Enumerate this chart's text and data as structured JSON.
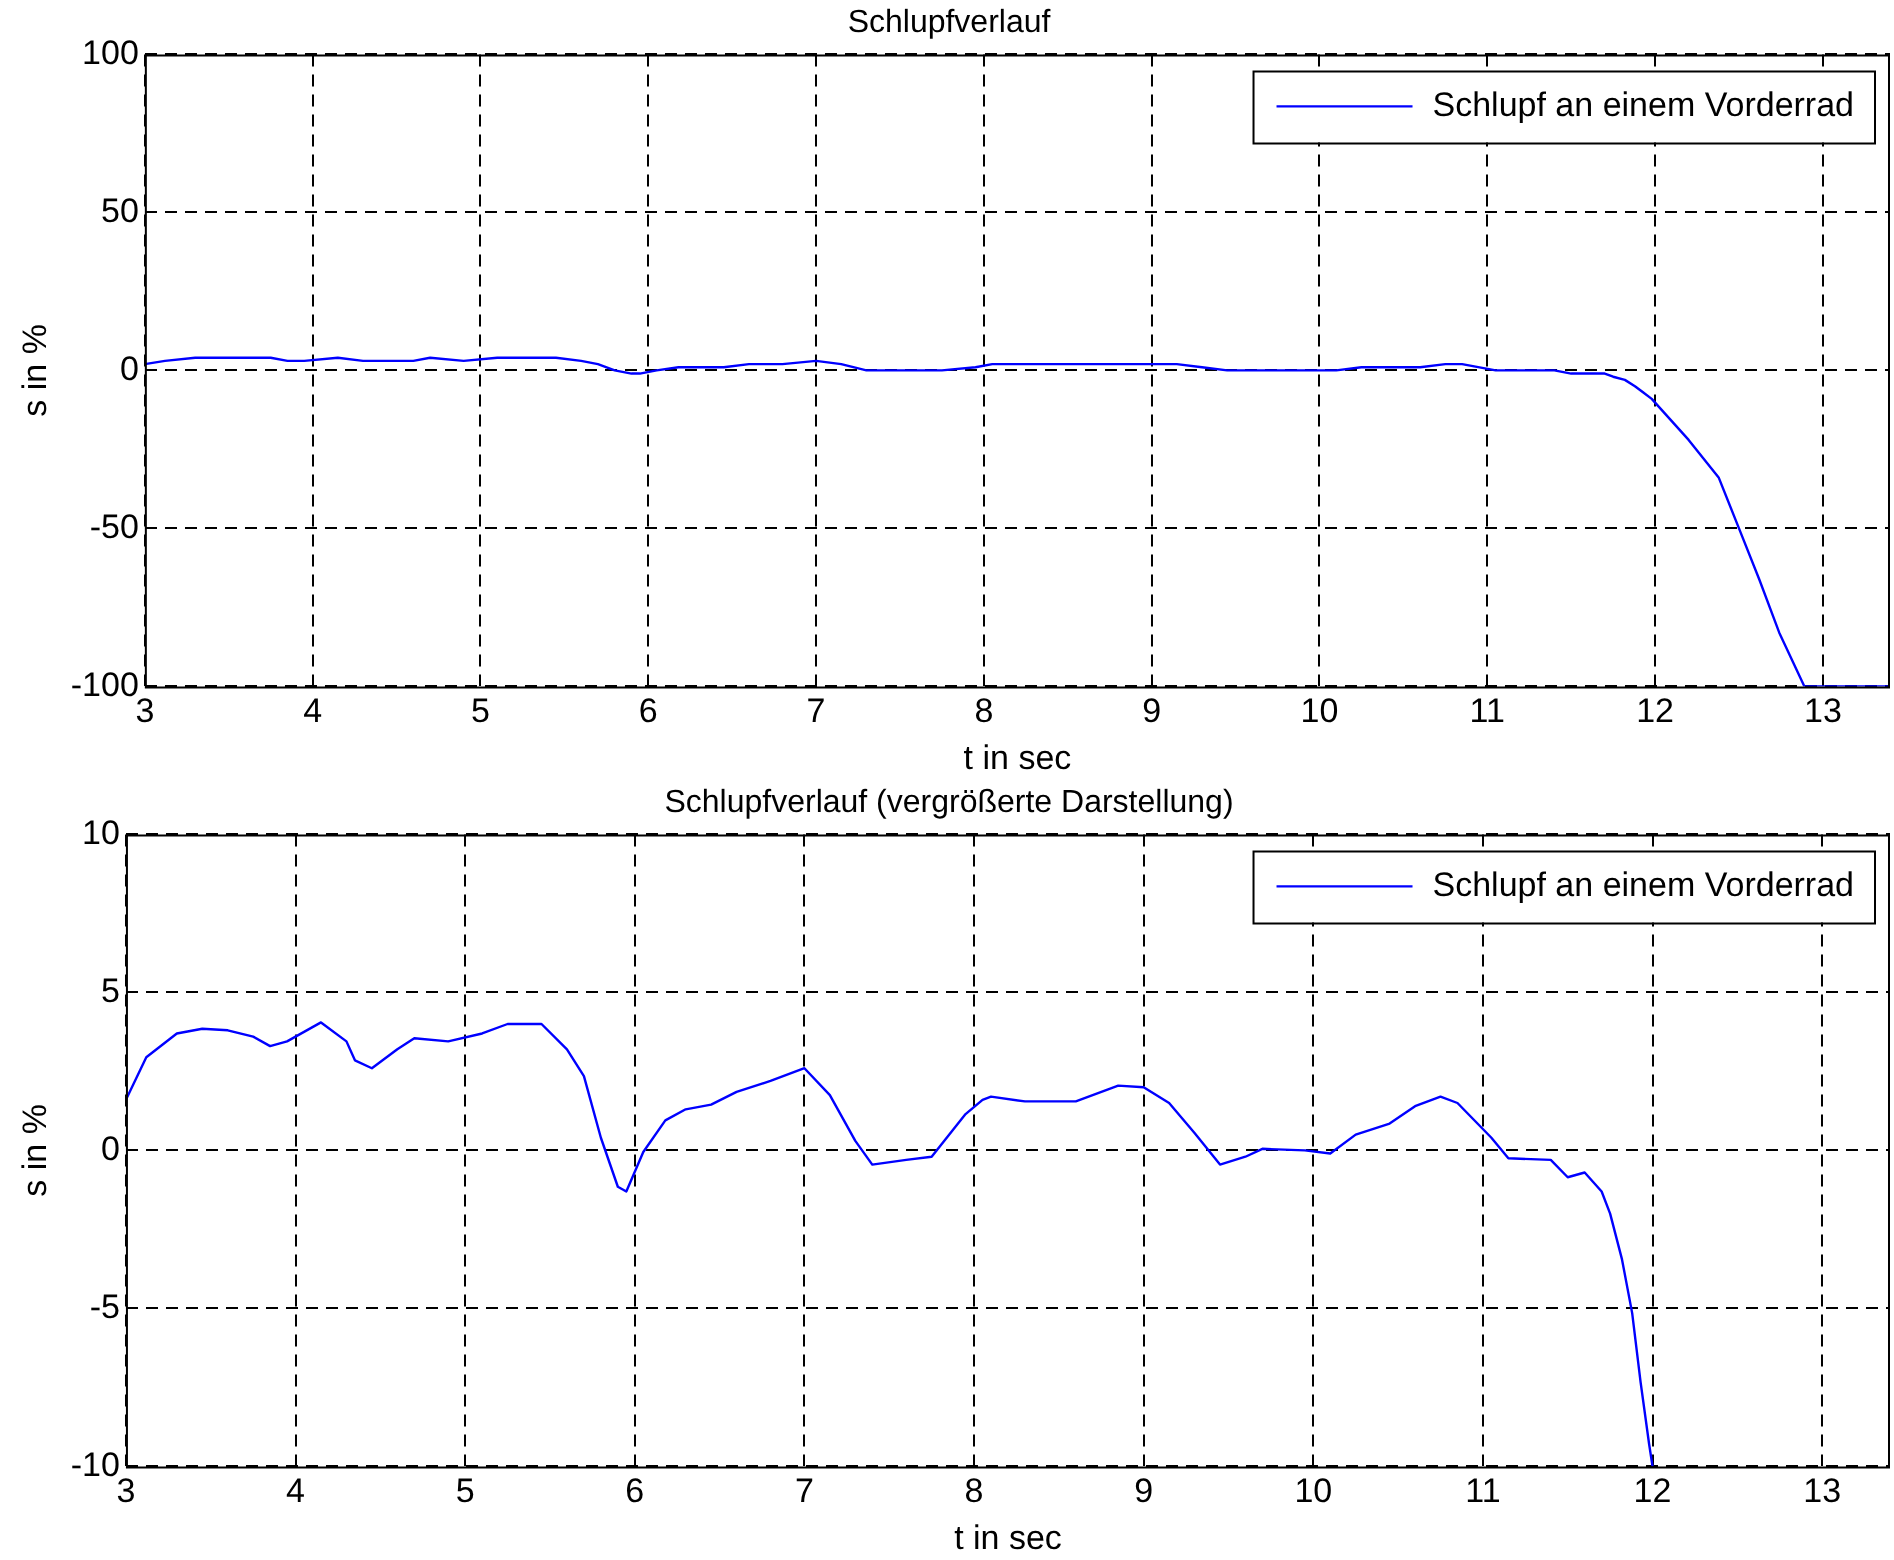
{
  "chart_data": [
    {
      "type": "line",
      "title": "Schlupfverlauf",
      "xlabel": "t in sec",
      "ylabel": "s in %",
      "xlim": [
        3,
        13.4
      ],
      "ylim": [
        -100,
        100
      ],
      "xticks": [
        3,
        4,
        5,
        6,
        7,
        8,
        9,
        10,
        11,
        12,
        13
      ],
      "yticks": [
        -100,
        -50,
        0,
        50,
        100
      ],
      "grid": true,
      "legend": "top right",
      "series": [
        {
          "name": "Schlupf an einem Vorderrad",
          "color": "#0000ff",
          "x": [
            3.0,
            3.12,
            3.3,
            3.45,
            3.6,
            3.75,
            3.85,
            3.95,
            4.15,
            4.3,
            4.35,
            4.45,
            4.6,
            4.7,
            4.9,
            5.1,
            5.25,
            5.45,
            5.6,
            5.7,
            5.8,
            5.9,
            5.95,
            6.05,
            6.18,
            6.3,
            6.45,
            6.6,
            6.8,
            7.0,
            7.15,
            7.3,
            7.4,
            7.6,
            7.75,
            7.95,
            8.05,
            8.1,
            8.3,
            8.6,
            8.85,
            9.0,
            9.15,
            9.3,
            9.45,
            9.6,
            9.7,
            9.95,
            10.1,
            10.25,
            10.45,
            10.6,
            10.75,
            10.85,
            11.05,
            11.15,
            11.4,
            11.5,
            11.6,
            11.7,
            11.75,
            11.82,
            11.88,
            11.93,
            11.98,
            12.2,
            12.38,
            12.5,
            12.62,
            12.74,
            12.89,
            13.4
          ],
          "values": [
            2,
            3,
            4,
            4,
            4,
            4,
            3,
            3,
            4,
            3,
            3,
            3,
            3,
            4,
            3,
            4,
            4,
            4,
            3,
            2,
            0,
            -1,
            -1,
            0,
            1,
            1,
            1,
            2,
            2,
            3,
            2,
            0,
            0,
            0,
            0,
            1,
            2,
            2,
            2,
            2,
            2,
            2,
            2,
            1,
            0,
            0,
            0,
            0,
            0,
            1,
            1,
            1,
            2,
            2,
            0,
            0,
            0,
            -1,
            -1,
            -1,
            -2,
            -3,
            -5,
            -7,
            -9,
            -22,
            -34,
            -50,
            -66,
            -83,
            -100,
            -100
          ]
        }
      ]
    },
    {
      "type": "line",
      "title": "Schlupfverlauf (vergrößerte Darstellung)",
      "xlabel": "t in sec",
      "ylabel": "s in %",
      "xlim": [
        3,
        13.4
      ],
      "ylim": [
        -10,
        10
      ],
      "xticks": [
        3,
        4,
        5,
        6,
        7,
        8,
        9,
        10,
        11,
        12,
        13
      ],
      "yticks": [
        -10,
        -5,
        0,
        5,
        10
      ],
      "grid": true,
      "legend": "top right",
      "series": [
        {
          "name": "Schlupf an einem Vorderrad",
          "color": "#0000ff",
          "x": [
            3.0,
            3.12,
            3.3,
            3.45,
            3.6,
            3.75,
            3.85,
            3.95,
            4.15,
            4.3,
            4.35,
            4.45,
            4.6,
            4.7,
            4.9,
            5.1,
            5.25,
            5.45,
            5.6,
            5.7,
            5.8,
            5.9,
            5.95,
            6.05,
            6.18,
            6.3,
            6.45,
            6.6,
            6.8,
            7.0,
            7.15,
            7.3,
            7.4,
            7.6,
            7.75,
            7.95,
            8.05,
            8.1,
            8.3,
            8.6,
            8.85,
            9.0,
            9.15,
            9.3,
            9.45,
            9.6,
            9.7,
            9.95,
            10.1,
            10.25,
            10.45,
            10.6,
            10.75,
            10.85,
            11.05,
            11.15,
            11.4,
            11.5,
            11.6,
            11.7,
            11.75,
            11.82,
            11.88,
            11.93,
            11.98,
            12.0
          ],
          "values": [
            1.6,
            2.95,
            3.7,
            3.85,
            3.8,
            3.6,
            3.3,
            3.45,
            4.05,
            3.45,
            2.85,
            2.6,
            3.2,
            3.55,
            3.45,
            3.7,
            4.0,
            4.0,
            3.2,
            2.35,
            0.4,
            -1.15,
            -1.3,
            -0.05,
            0.95,
            1.3,
            1.45,
            1.85,
            2.2,
            2.6,
            1.75,
            0.3,
            -0.45,
            -0.3,
            -0.2,
            1.15,
            1.6,
            1.7,
            1.55,
            1.55,
            2.05,
            2.0,
            1.5,
            0.55,
            -0.45,
            -0.2,
            0.05,
            0,
            -0.1,
            0.5,
            0.85,
            1.4,
            1.7,
            1.5,
            0.4,
            -0.25,
            -0.3,
            -0.85,
            -0.7,
            -1.3,
            -2.0,
            -3.45,
            -5.15,
            -7.35,
            -9.3,
            -10
          ]
        }
      ]
    }
  ]
}
